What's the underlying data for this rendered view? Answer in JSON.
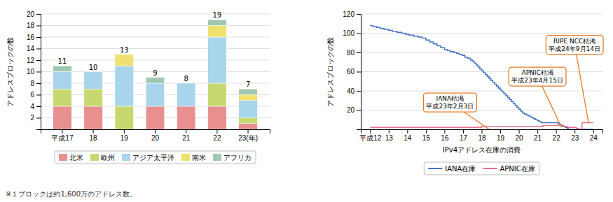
{
  "chart_data": [
    {
      "type": "bar",
      "stacked": true,
      "categories": [
        "平成17",
        "18",
        "19",
        "20",
        "21",
        "22",
        "23(年)"
      ],
      "series": [
        {
          "name": "北米",
          "color": "#e89090",
          "values": [
            4,
            4,
            0,
            4,
            4,
            4,
            1
          ]
        },
        {
          "name": "欧州",
          "color": "#c8d870",
          "values": [
            3,
            3,
            4,
            0,
            0,
            4,
            1
          ]
        },
        {
          "name": "アジア太平洋",
          "color": "#a8d4ec",
          "values": [
            3,
            3,
            7,
            4,
            4,
            8,
            3
          ]
        },
        {
          "name": "南米",
          "color": "#f0e070",
          "values": [
            0,
            0,
            2,
            0,
            0,
            2,
            1
          ]
        },
        {
          "name": "アフリカ",
          "color": "#a0c8b0",
          "values": [
            1,
            0,
            0,
            1,
            0,
            1,
            1
          ]
        }
      ],
      "totals": [
        11,
        10,
        13,
        9,
        8,
        19,
        7
      ],
      "y_label": "アドレスブロックの数",
      "ylim": [
        0,
        20
      ],
      "yticks": [
        2,
        4,
        6,
        8,
        10,
        12,
        14,
        16,
        18,
        20
      ],
      "grid": true,
      "legend": "bottom",
      "note": "※１ブロックは約1,600万のアドレス数。"
    },
    {
      "type": "line",
      "x_label": "IPv4アドレス在庫の消費",
      "y_label": "アドレスブロックの数",
      "xlim": [
        11.5,
        24.5
      ],
      "xticks": [
        {
          "value": 12,
          "label": "平成12"
        },
        13,
        14,
        15,
        16,
        17,
        18,
        19,
        20,
        21,
        22,
        23,
        24
      ],
      "ylim": [
        0,
        120
      ],
      "yticks": [
        20,
        40,
        60,
        80,
        100,
        120
      ],
      "grid": true,
      "legend": "bottom",
      "series": [
        {
          "name": "IANA在庫",
          "color": "#4472c4",
          "line_style": "step",
          "x": [
            12,
            12.15,
            12.35,
            12.55,
            12.75,
            13,
            13.2,
            13.45,
            13.7,
            13.9,
            14.1,
            14.35,
            14.6,
            14.8,
            15,
            15.2,
            15.4,
            15.6,
            15.8,
            16,
            16.15,
            16.3,
            16.5,
            16.65,
            16.8,
            16.95,
            17.1,
            17.25,
            17.4,
            17.5,
            17.6,
            17.7,
            17.8,
            17.9,
            18,
            18.1,
            18.2,
            18.3,
            18.4,
            18.5,
            18.6,
            18.7,
            18.8,
            18.9,
            19,
            19.1,
            19.2,
            19.3,
            19.4,
            19.5,
            19.6,
            19.7,
            19.8,
            19.9,
            20,
            20.1,
            20.2,
            20.3,
            20.4,
            20.5,
            20.6,
            20.7,
            20.8,
            20.9,
            21,
            21.1,
            21.2,
            21.3,
            21.5,
            21.7,
            22,
            22.1,
            22.2,
            22.3,
            22.4,
            22.5,
            22.6,
            22.65,
            24
          ],
          "values": [
            108,
            107,
            106,
            105,
            104,
            103,
            102,
            101,
            100,
            99,
            98,
            97,
            96,
            95,
            93,
            91,
            89,
            87,
            85,
            83,
            82,
            81,
            80,
            79,
            78,
            77,
            75,
            74,
            72,
            71,
            69,
            67,
            65,
            63,
            61,
            59,
            57,
            55,
            53,
            51,
            49,
            47,
            45,
            43,
            41,
            39,
            37,
            35,
            33,
            31,
            29,
            27,
            25,
            23,
            21,
            19,
            17,
            16,
            15,
            14,
            13,
            12,
            11,
            10,
            9,
            8,
            7,
            7,
            7,
            7,
            7,
            6,
            5,
            4,
            3,
            2,
            1,
            0,
            0
          ]
        },
        {
          "name": "APNIC在庫",
          "color": "#e8728c",
          "line_style": "step",
          "x": [
            12,
            12.5,
            13,
            13.5,
            14,
            14.5,
            15,
            15.5,
            16,
            16.5,
            17,
            17.3,
            17.6,
            17.9,
            18,
            18.3,
            18.6,
            18.9,
            19,
            19.3,
            19.5,
            19.8,
            20,
            20.3,
            20.5,
            20.8,
            21,
            21.3,
            21.6,
            21.8,
            22,
            22.2,
            22.35,
            22.5,
            22.65,
            22.8,
            23,
            23.1,
            23.2,
            23.25,
            23.4,
            23.6,
            23.8,
            24
          ],
          "values": [
            2,
            2,
            2,
            2,
            2,
            2,
            2,
            2,
            2,
            2,
            2,
            2,
            2,
            2,
            3,
            3,
            3,
            3,
            3,
            3,
            3,
            3,
            3,
            3,
            3,
            3,
            3,
            4,
            4,
            4,
            4,
            4,
            3,
            3,
            2,
            2,
            2,
            1,
            0,
            0,
            7,
            7,
            7,
            7
          ]
        }
      ],
      "annotations": [
        {
          "text": "IANA枯渇\n平成23年2月3日",
          "x": 18.4,
          "y": 0,
          "text_x": 16.3,
          "text_y": 28,
          "color": "#e87820"
        },
        {
          "text": "APNIC枯渇\n平成23年4月15日",
          "x": 22.3,
          "y": 2,
          "text_x": 21.0,
          "text_y": 55,
          "color": "#e87820"
        },
        {
          "text": "RIPE NCC枯渇\n平成24年9月14日",
          "x": 23.75,
          "y": 7,
          "text_x": 23.0,
          "text_y": 88,
          "color": "#e87820"
        }
      ]
    }
  ]
}
